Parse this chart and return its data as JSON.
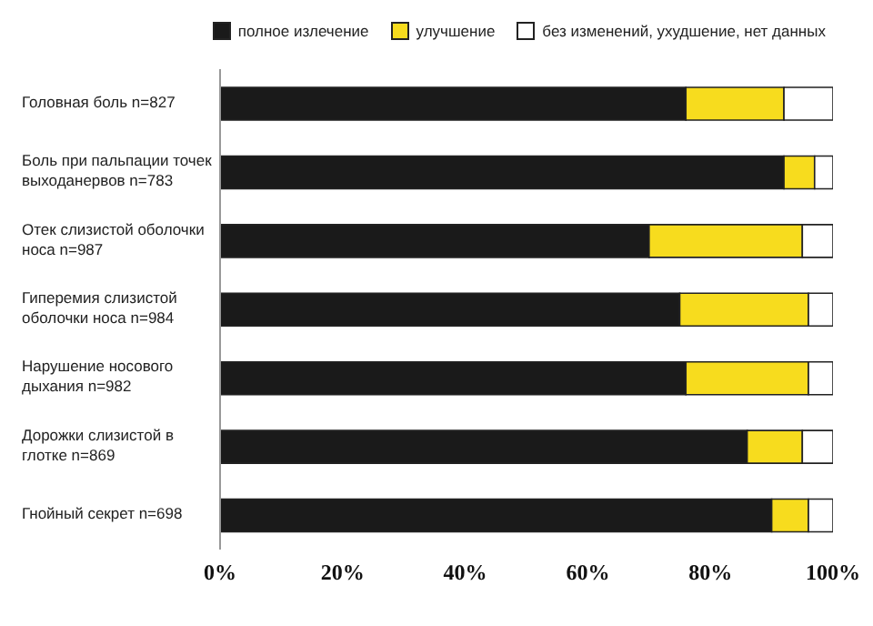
{
  "chart_data": {
    "type": "bar",
    "orientation": "horizontal",
    "stacked": true,
    "legend": "top",
    "grid": false,
    "categories": [
      "Головная боль n=827",
      "Боль при пальпации точек выходанервов n=783",
      "Отек слизистой оболочки носа n=987",
      "Гиперемия слизистой оболочки носа n=984",
      "Нарушение носового дыхания n=982",
      "Дорожки слизистой в глотке n=869",
      "Гнойный секрет n=698"
    ],
    "series": [
      {
        "name": "полное излечение",
        "color": "#1a1a1a",
        "values": [
          76,
          92,
          70,
          75,
          76,
          86,
          90
        ]
      },
      {
        "name": "улучшение",
        "color": "#f7dc1e",
        "values": [
          16,
          5,
          25,
          21,
          20,
          9,
          6
        ]
      },
      {
        "name": "без изменений, ухудшение, нет данных",
        "color": "#ffffff",
        "values": [
          8,
          3,
          5,
          4,
          4,
          5,
          4
        ]
      }
    ],
    "xlim": [
      0,
      100
    ],
    "xticks": [
      {
        "value": 0,
        "label": "0%"
      },
      {
        "value": 20,
        "label": "20%"
      },
      {
        "value": 40,
        "label": "40%"
      },
      {
        "value": 60,
        "label": "60%"
      },
      {
        "value": 80,
        "label": "80%"
      },
      {
        "value": 100,
        "label": "100%"
      }
    ]
  }
}
